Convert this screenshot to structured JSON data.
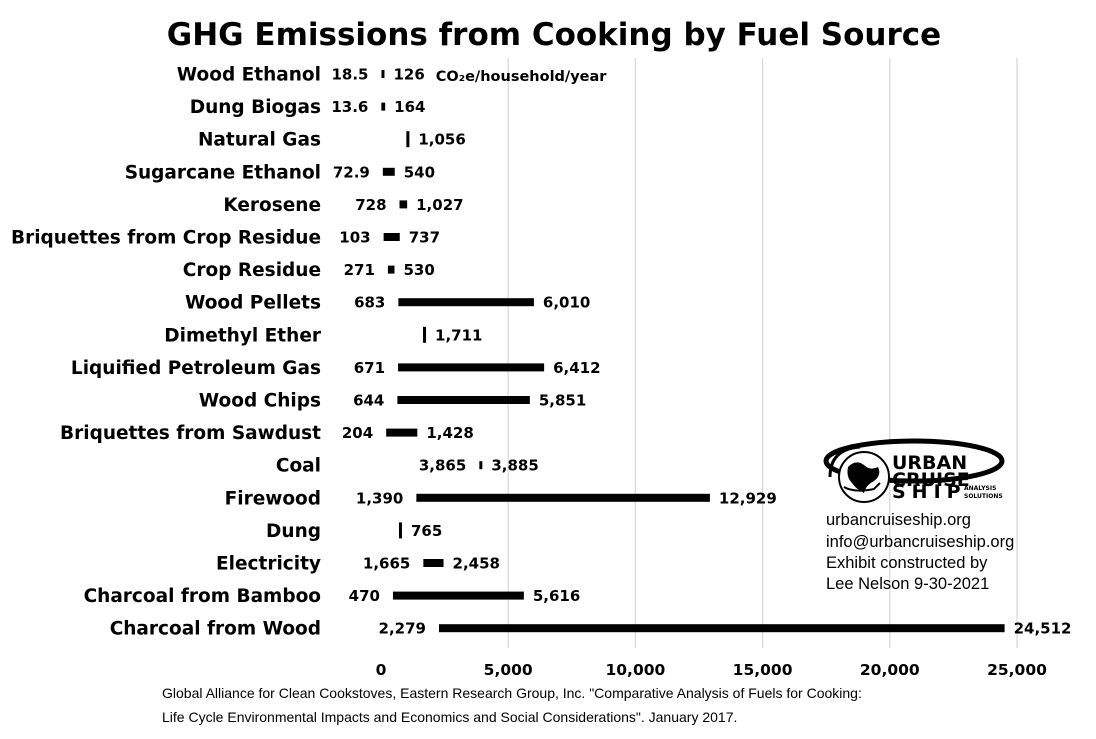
{
  "chart_data": {
    "type": "bar",
    "subtype": "floating-range",
    "title": "GHG Emissions from Cooking by Fuel Source",
    "unit_label": "CO₂e/household/year",
    "categories": [
      "Wood Ethanol",
      "Dung Biogas",
      "Natural Gas",
      "Sugarcane Ethanol",
      "Kerosene",
      "Briquettes from Crop Residue",
      "Crop Residue",
      "Wood Pellets",
      "Dimethyl Ether",
      "Liquified Petroleum Gas",
      "Wood Chips",
      "Briquettes from Sawdust",
      "Coal",
      "Firewood",
      "Dung",
      "Electricity",
      "Charcoal from Bamboo",
      "Charcoal from Wood"
    ],
    "series": [
      {
        "values_low": [
          18.5,
          13.6,
          null,
          72.9,
          728,
          103,
          271,
          683,
          null,
          671,
          644,
          204,
          3865,
          1390,
          null,
          1665,
          470,
          2279
        ],
        "values_high": [
          126,
          164,
          1056,
          540,
          1027,
          737,
          530,
          6010,
          1711,
          6412,
          5851,
          1428,
          3885,
          12929,
          765,
          2458,
          5616,
          24512
        ]
      }
    ],
    "low_labels": [
      "18.5",
      "13.6",
      "",
      "72.9",
      "728",
      "103",
      "271",
      "683",
      "",
      "671",
      "644",
      "204",
      "3,865",
      "1,390",
      "",
      "1,665",
      "470",
      "2,279"
    ],
    "high_labels": [
      "126",
      "164",
      "1,056",
      "540",
      "1,027",
      "737",
      "530",
      "6,010",
      "1,711",
      "6,412",
      "5,851",
      "1,428",
      "3,885",
      "12,929",
      "765",
      "2,458",
      "5,616",
      "24,512"
    ],
    "xlim": [
      0,
      25000
    ],
    "xticks": [
      0,
      5000,
      10000,
      15000,
      20000,
      25000
    ],
    "xtick_labels": [
      "0",
      "5,000",
      "10,000",
      "15,000",
      "20,000",
      "25,000"
    ],
    "grid": "vertical",
    "bar_color": "#000000",
    "grid_color": "#d9d9d9"
  },
  "source": {
    "line1": "Global Alliance for Clean Cookstoves, Eastern Research Group, Inc. \"Comparative Analysis of Fuels for Cooking:",
    "line2": "Life Cycle Environmental Impacts and Economics and Social Considerations\". January 2017."
  },
  "contact": {
    "website": "urbancruiseship.org",
    "email": "info@urbancruiseship.org",
    "credit_line1": "Exhibit constructed by",
    "credit_line2": "Lee Nelson 9-30-2021"
  },
  "logo": {
    "line1": "URBAN",
    "line2": "CRUISE",
    "line3": "SHIP",
    "tag1": "ANALYSIS",
    "tag2": "SOLUTIONS",
    "icon": "globe-ship-logo-icon"
  }
}
